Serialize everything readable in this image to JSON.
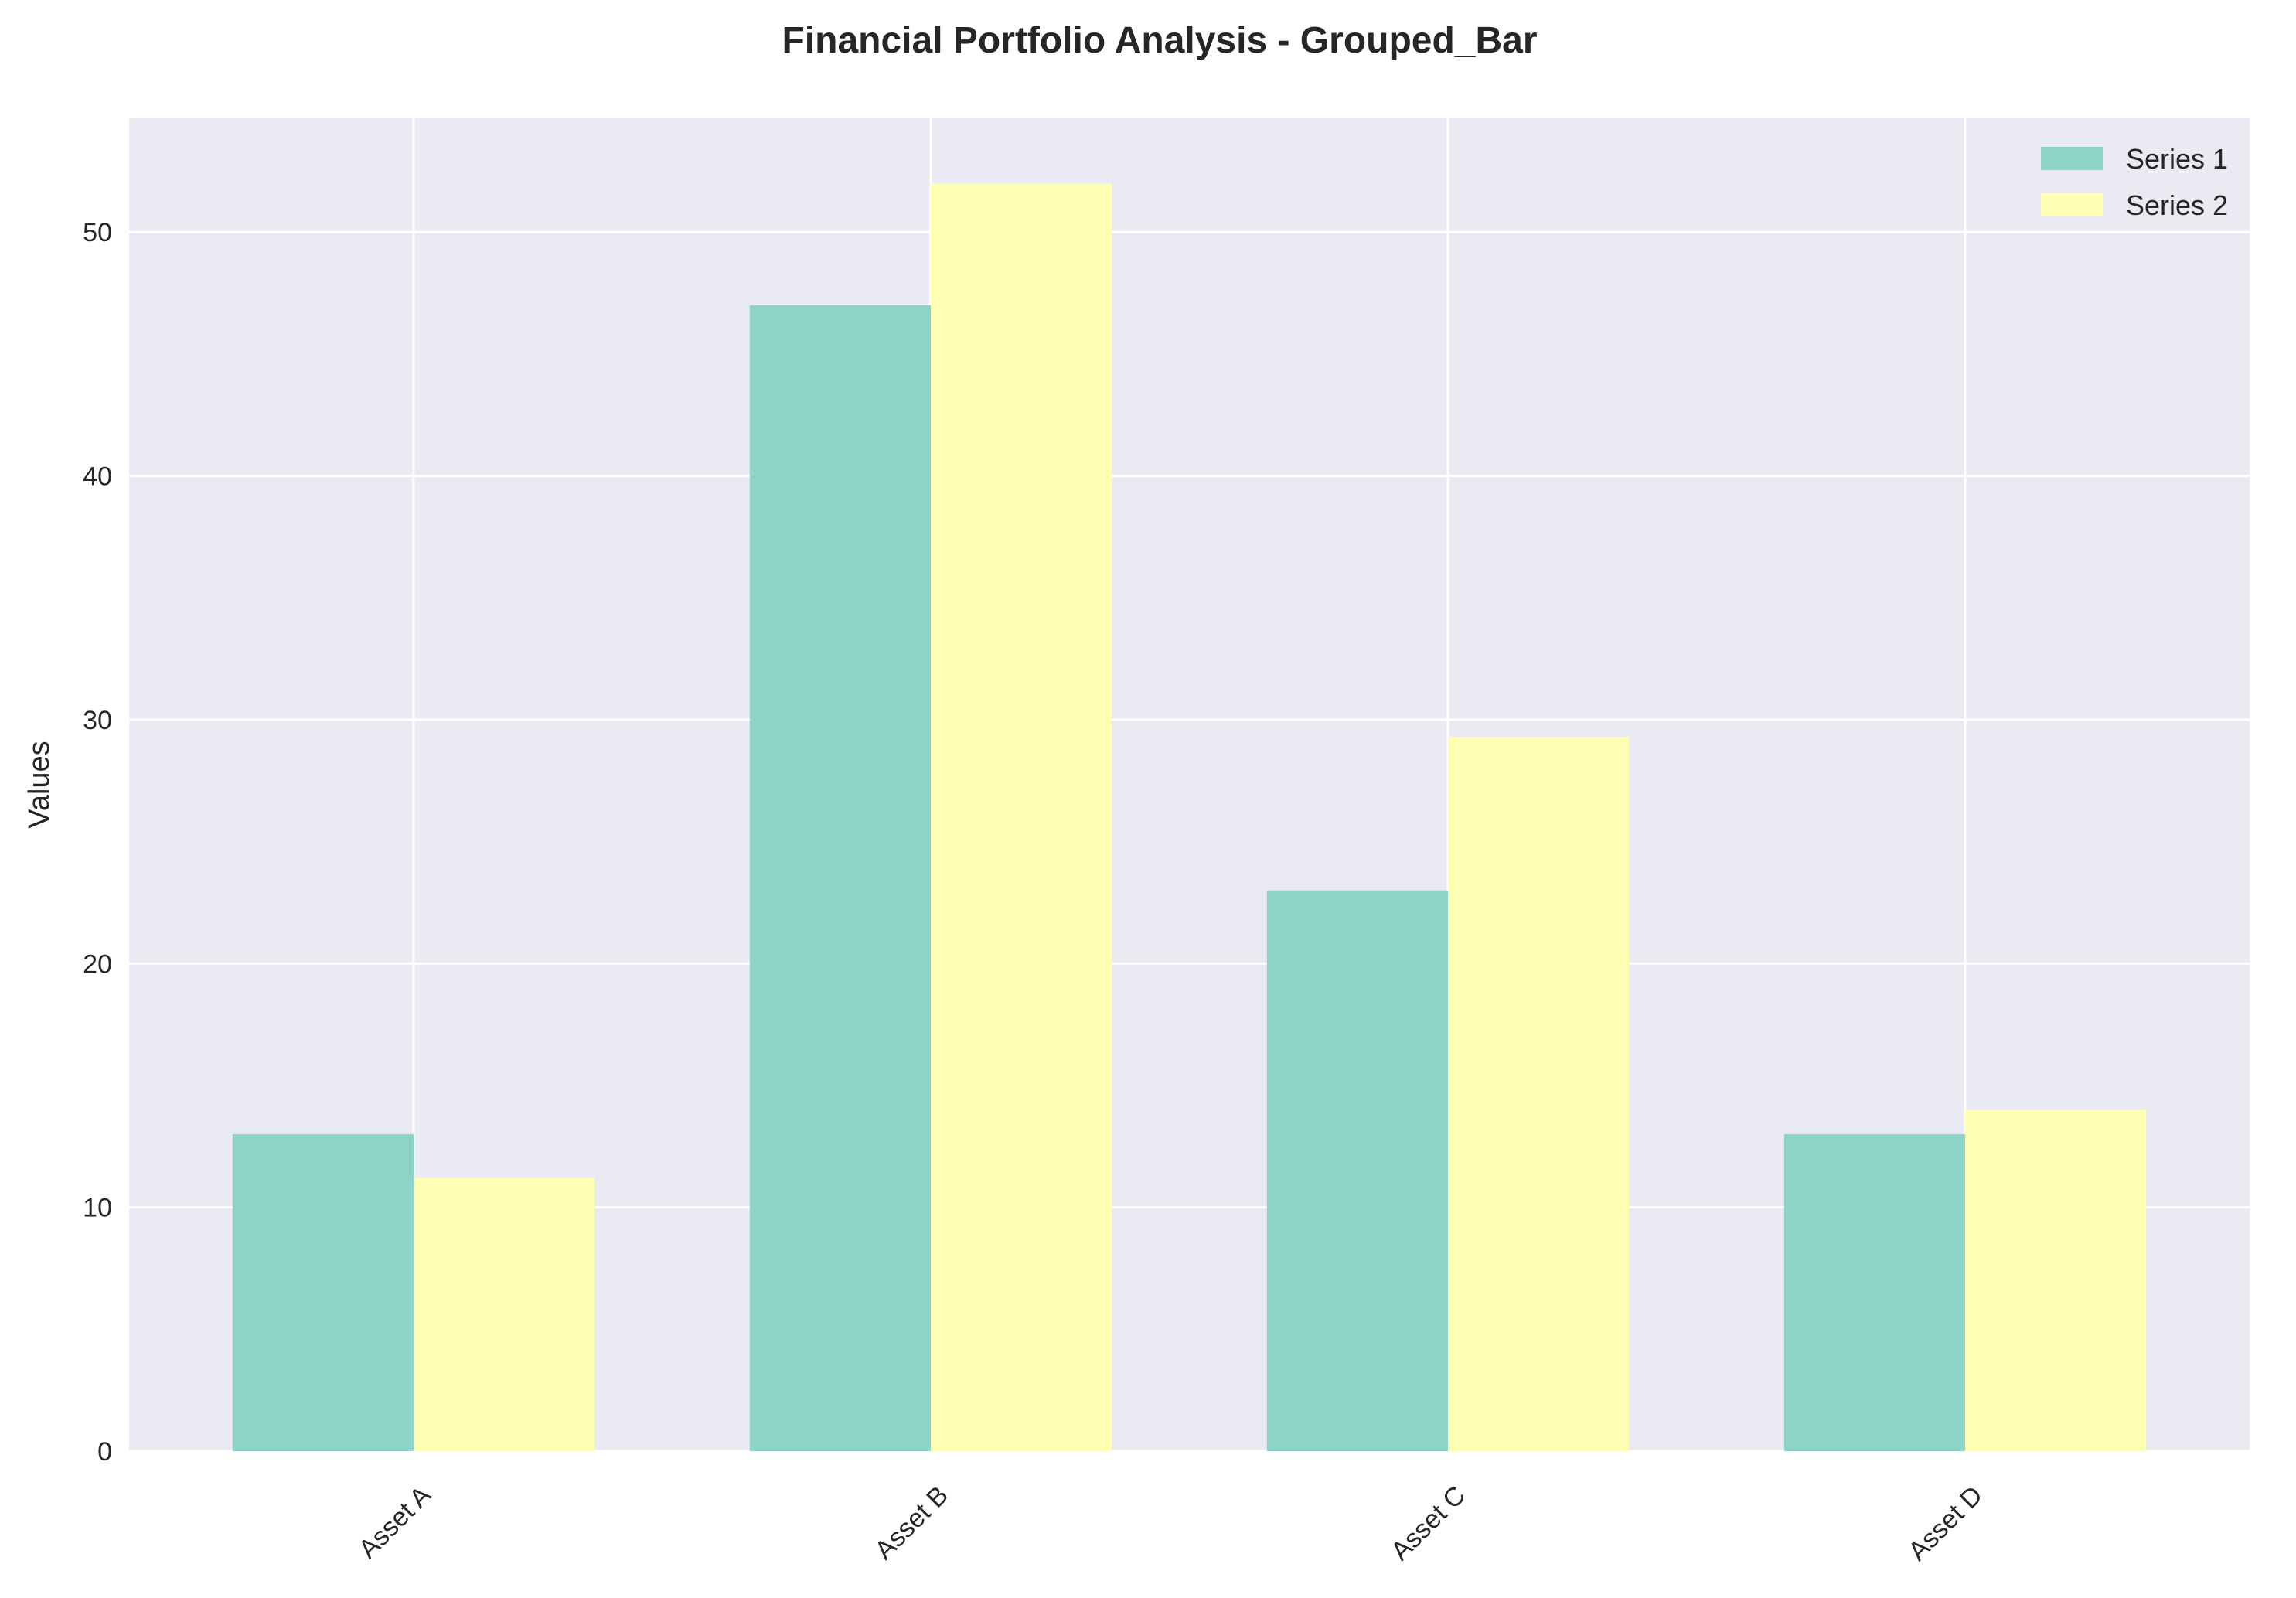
{
  "chart_data": {
    "type": "bar",
    "title": "Financial Portfolio Analysis - Grouped_Bar",
    "xlabel": "",
    "ylabel": "Values",
    "categories": [
      "Asset A",
      "Asset B",
      "Asset C",
      "Asset D"
    ],
    "series": [
      {
        "name": "Series 1",
        "color": "#8dd3c7",
        "values": [
          13,
          47,
          23,
          13
        ]
      },
      {
        "name": "Series 2",
        "color": "#ffffb3",
        "values": [
          11.2,
          52,
          29.3,
          14
        ]
      }
    ],
    "ylim": [
      0,
      54.7
    ],
    "yticks": [
      "0",
      "10",
      "20",
      "30",
      "40",
      "50"
    ],
    "grid": true,
    "legend_position": "top-right",
    "plot_background": "#eaeaf2",
    "grid_color": "#ffffff"
  }
}
